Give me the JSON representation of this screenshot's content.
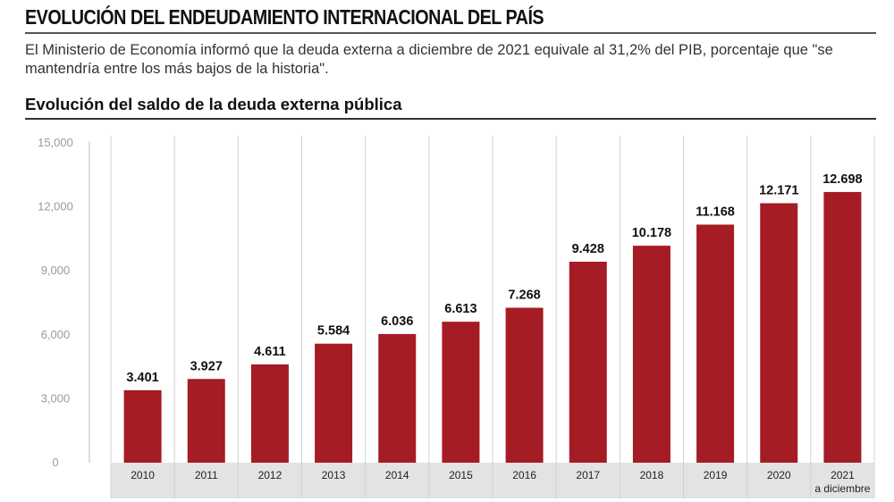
{
  "header": {
    "headline": "EVOLUCIÓN DEL ENDEUDAMIENTO INTERNACIONAL DEL PAÍS",
    "lede": "El Ministerio de Economía informó que la deuda externa a diciembre de 2021 equivale al 31,2% del PIB, porcentaje que \"se mantendría entre los más bajos de la historia\".",
    "subhead": "Evolución del saldo de la deuda externa pública"
  },
  "chart_data": {
    "type": "bar",
    "title": "Evolución del saldo de la deuda externa pública",
    "categories": [
      "2010",
      "2011",
      "2012",
      "2013",
      "2014",
      "2015",
      "2016",
      "2017",
      "2018",
      "2019",
      "2020",
      "2021"
    ],
    "category_sublabels": [
      "",
      "",
      "",
      "",
      "",
      "",
      "",
      "",
      "",
      "",
      "",
      "a diciembre"
    ],
    "values": [
      3401,
      3927,
      4611,
      5584,
      6036,
      6613,
      7268,
      9428,
      10178,
      11168,
      12171,
      12698
    ],
    "value_labels": [
      "3.401",
      "3.927",
      "4.611",
      "5.584",
      "6.036",
      "6.613",
      "7.268",
      "9.428",
      "10.178",
      "11.168",
      "12.171",
      "12.698"
    ],
    "y_ticks": [
      0,
      3000,
      6000,
      9000,
      12000,
      15000
    ],
    "y_tick_labels": [
      "0",
      "3,000",
      "6,000",
      "9,000",
      "12,000",
      "15,000"
    ],
    "ylim": [
      0,
      15000
    ],
    "xlabel": "",
    "ylabel": "",
    "grid": "vertical separators",
    "legend": "none",
    "colors": {
      "bar": "#a51c24",
      "axis_band": "#e3e3e3",
      "grid": "#d0d0d0"
    }
  }
}
